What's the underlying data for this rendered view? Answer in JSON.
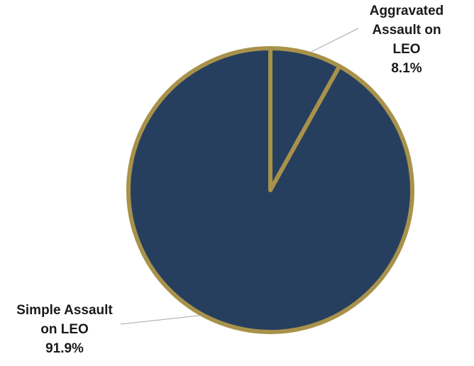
{
  "chart_data": {
    "type": "pie",
    "title": "",
    "start_angle_deg": 0,
    "direction": "clockwise",
    "slices": [
      {
        "label": "Aggravated Assault on LEO",
        "label_lines": [
          "Aggravated",
          "Assault on",
          "LEO"
        ],
        "value": 8.1,
        "value_label": "8.1%",
        "color": "#273f5e"
      },
      {
        "label": "Simple Assault on LEO",
        "label_lines": [
          "Simple Assault",
          "on LEO"
        ],
        "value": 91.9,
        "value_label": "91.9%",
        "color": "#273f5e"
      }
    ],
    "border_color": "#a8924b",
    "leader_line_color": "#a6a6a6",
    "legend": "none"
  }
}
